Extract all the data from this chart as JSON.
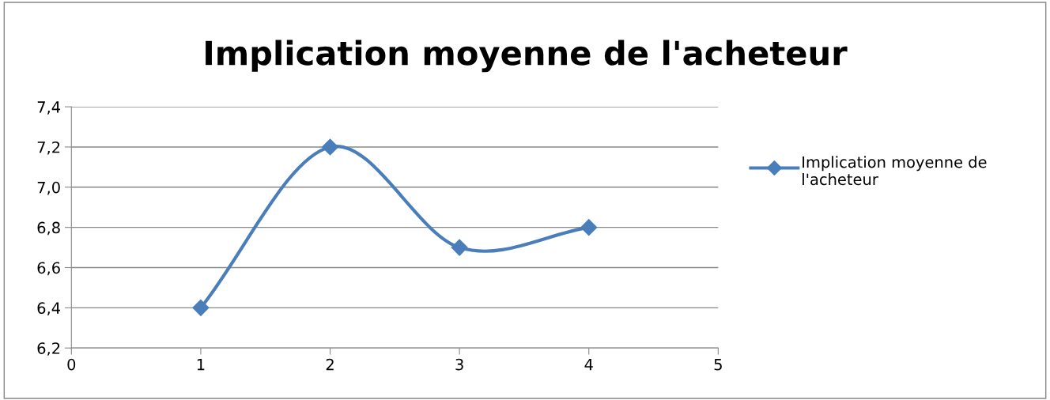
{
  "chart_data": {
    "type": "line",
    "title": "Implication moyenne de l'acheteur",
    "x": [
      1,
      2,
      3,
      4
    ],
    "series": [
      {
        "name": "Implication moyenne de l'acheteur",
        "color": "#4a7ebb",
        "values": [
          6.4,
          7.2,
          6.7,
          6.8
        ]
      }
    ],
    "xlim": [
      0,
      5
    ],
    "xticks": [
      0,
      1,
      2,
      3,
      4,
      5
    ],
    "ylim": [
      6.2,
      7.4
    ],
    "yticks": [
      {
        "value": 6.2,
        "label": "6,2"
      },
      {
        "value": 6.4,
        "label": "6,4"
      },
      {
        "value": 6.6,
        "label": "6,6"
      },
      {
        "value": 6.8,
        "label": "6,8"
      },
      {
        "value": 7.0,
        "label": "7,0"
      },
      {
        "value": 7.2,
        "label": "7,2"
      },
      {
        "value": 7.4,
        "label": "7,4"
      }
    ],
    "grid": "y",
    "legend": "right",
    "marker": "diamond",
    "line_style": "solid"
  }
}
